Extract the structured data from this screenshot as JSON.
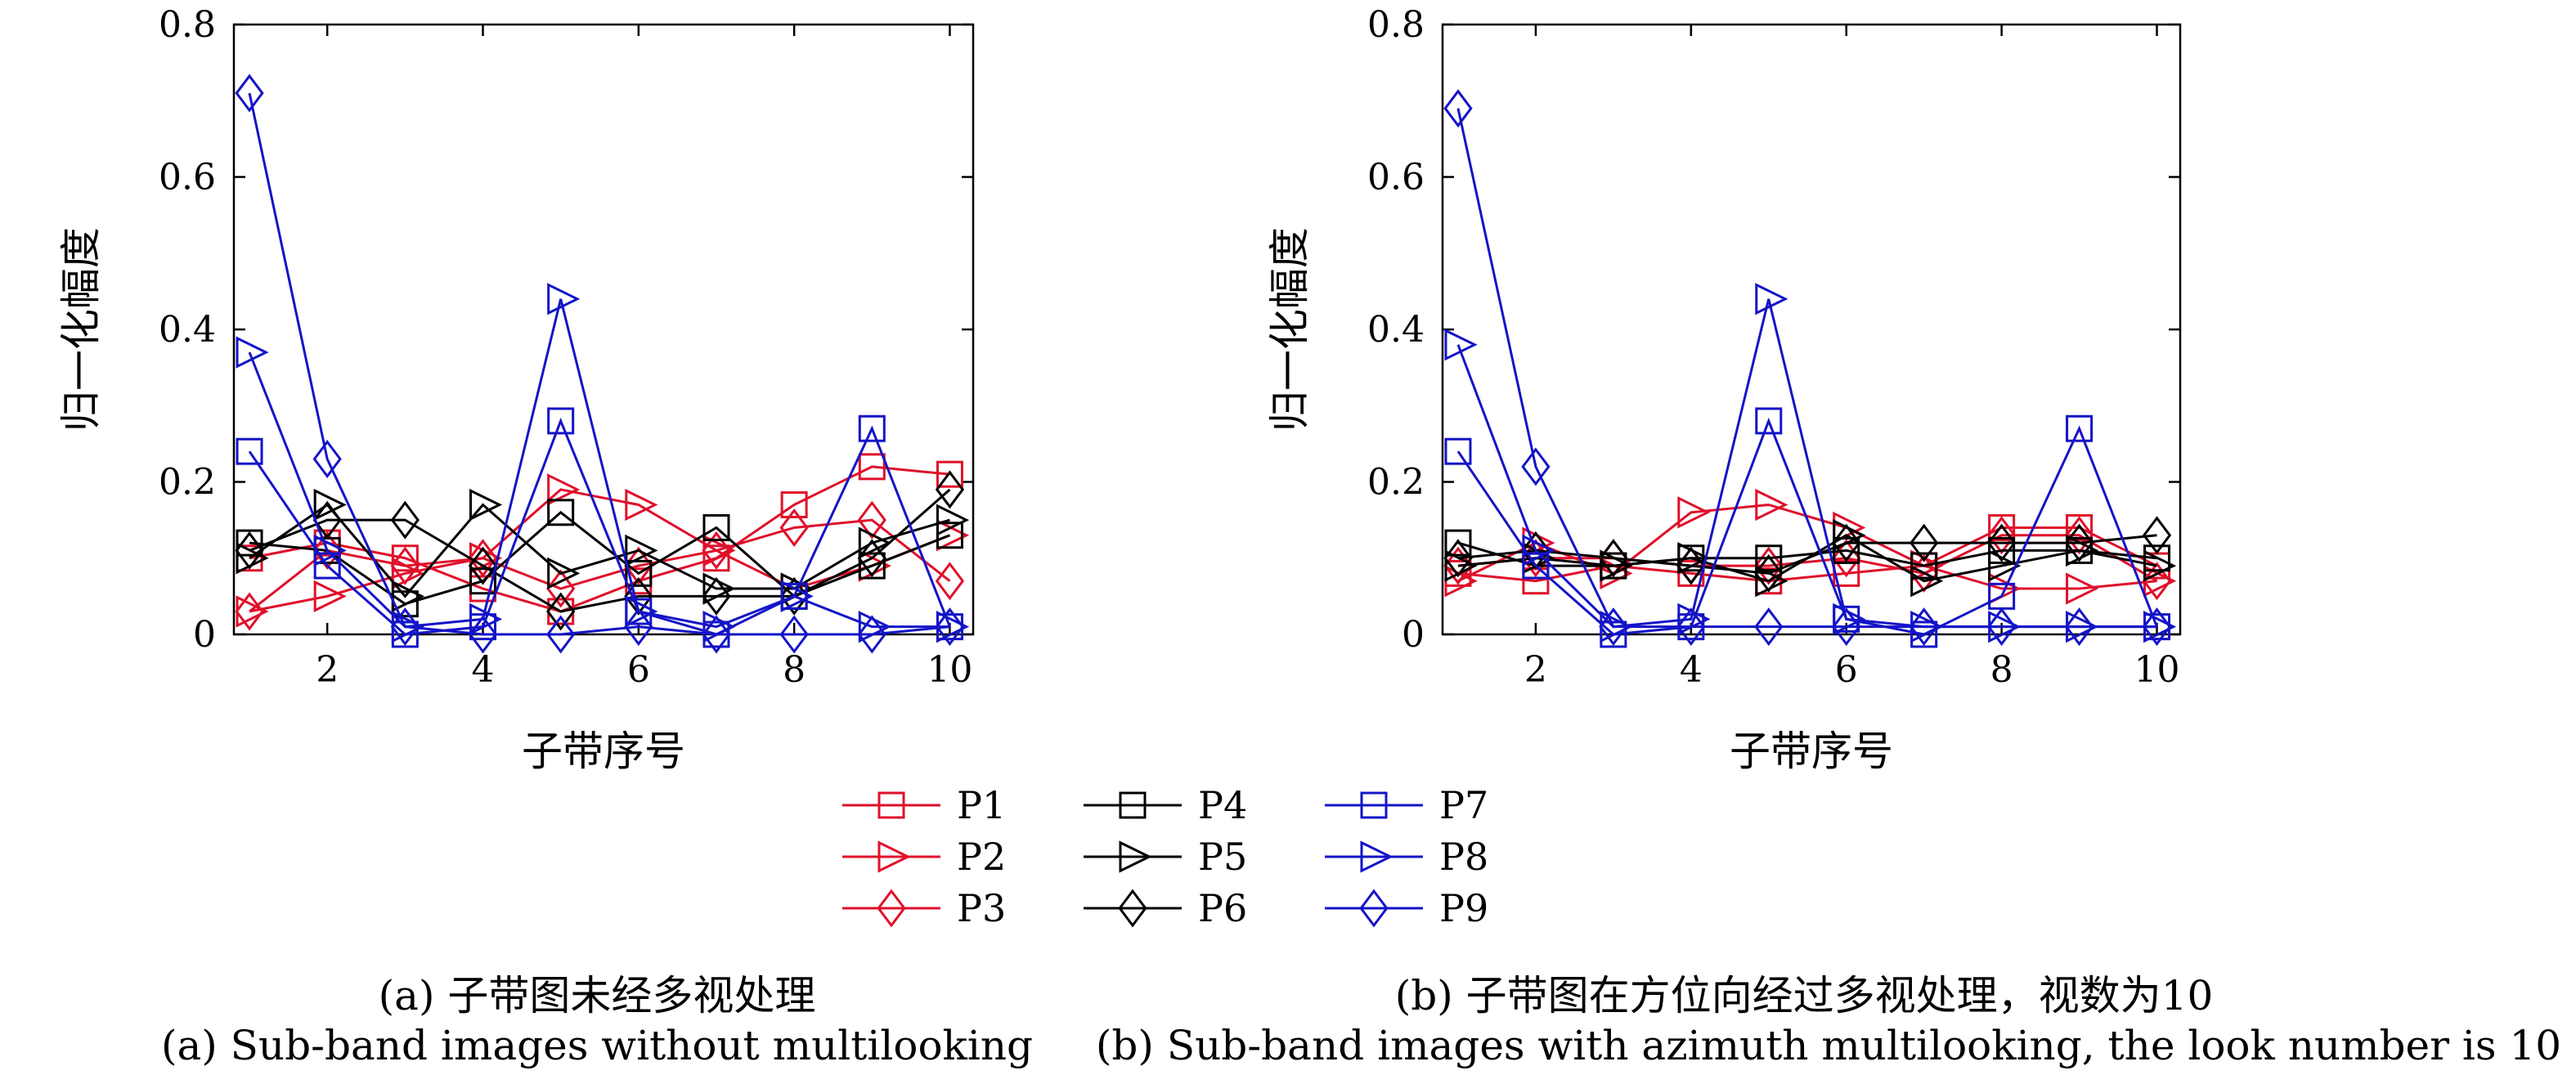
{
  "colors": {
    "P1": "#e0102a",
    "P2": "#e0102a",
    "P3": "#e0102a",
    "P4": "#000000",
    "P5": "#000000",
    "P6": "#000000",
    "P7": "#1414c8",
    "P8": "#1414c8",
    "P9": "#1414c8"
  },
  "markers": {
    "P1": "square",
    "P2": "triangle-right",
    "P3": "diamond",
    "P4": "square",
    "P5": "triangle-right",
    "P6": "diamond",
    "P7": "square",
    "P8": "triangle-right",
    "P9": "diamond"
  },
  "legend": {
    "entries": [
      "P1",
      "P2",
      "P3",
      "P4",
      "P5",
      "P6",
      "P7",
      "P8",
      "P9"
    ],
    "placement": "bottom-center"
  },
  "captions": {
    "a_cn": "(a) 子带图未经多视处理",
    "a_en": "(a) Sub-band images without multilooking",
    "b_cn": "(b) 子带图在方位向经过多视处理，视数为10",
    "b_en": "(b) Sub-band images with azimuth multilooking, the look number is 10"
  },
  "chart_data": [
    {
      "type": "line",
      "xlabel": "子带序号",
      "ylabel": "归一化幅度",
      "xlim": [
        0.8,
        10.3
      ],
      "ylim": [
        0,
        0.8
      ],
      "xticks": [
        2,
        4,
        6,
        8,
        10
      ],
      "yticks": [
        0,
        0.2,
        0.4,
        0.6,
        0.8
      ],
      "grid": false,
      "x": [
        1,
        2,
        3,
        4,
        5,
        6,
        7,
        8,
        9,
        10
      ],
      "series": [
        {
          "name": "P1",
          "values": [
            0.1,
            0.12,
            0.1,
            0.06,
            0.03,
            0.07,
            0.1,
            0.17,
            0.22,
            0.21
          ]
        },
        {
          "name": "P2",
          "values": [
            0.03,
            0.05,
            0.08,
            0.1,
            0.19,
            0.17,
            0.11,
            0.06,
            0.09,
            0.13
          ]
        },
        {
          "name": "P3",
          "values": [
            0.03,
            0.11,
            0.09,
            0.1,
            0.06,
            0.09,
            0.11,
            0.14,
            0.15,
            0.07
          ]
        },
        {
          "name": "P4",
          "values": [
            0.12,
            0.11,
            0.04,
            0.07,
            0.16,
            0.08,
            0.14,
            0.05,
            0.09,
            0.13
          ]
        },
        {
          "name": "P5",
          "values": [
            0.1,
            0.17,
            0.05,
            0.17,
            0.08,
            0.11,
            0.06,
            0.06,
            0.12,
            0.15
          ]
        },
        {
          "name": "P6",
          "values": [
            0.11,
            0.15,
            0.15,
            0.09,
            0.03,
            0.05,
            0.05,
            0.05,
            0.1,
            0.19
          ]
        },
        {
          "name": "P7",
          "values": [
            0.24,
            0.09,
            0.0,
            0.01,
            0.28,
            0.03,
            0.0,
            0.05,
            0.27,
            0.01
          ]
        },
        {
          "name": "P8",
          "values": [
            0.37,
            0.11,
            0.01,
            0.02,
            0.44,
            0.03,
            0.01,
            0.05,
            0.01,
            0.01
          ]
        },
        {
          "name": "P9",
          "values": [
            0.71,
            0.23,
            0.01,
            0.0,
            0.0,
            0.01,
            0.0,
            0.0,
            0.0,
            0.01
          ]
        }
      ]
    },
    {
      "type": "line",
      "xlabel": "子带序号",
      "ylabel": "归一化幅度",
      "xlim": [
        0.8,
        10.3
      ],
      "ylim": [
        0,
        0.8
      ],
      "xticks": [
        2,
        4,
        6,
        8,
        10
      ],
      "yticks": [
        0,
        0.2,
        0.4,
        0.6,
        0.8
      ],
      "grid": false,
      "x": [
        1,
        2,
        3,
        4,
        5,
        6,
        7,
        8,
        9,
        10
      ],
      "series": [
        {
          "name": "P1",
          "values": [
            0.08,
            0.07,
            0.09,
            0.08,
            0.07,
            0.08,
            0.09,
            0.14,
            0.14,
            0.09
          ]
        },
        {
          "name": "P2",
          "values": [
            0.07,
            0.12,
            0.08,
            0.16,
            0.17,
            0.14,
            0.09,
            0.06,
            0.06,
            0.07
          ]
        },
        {
          "name": "P3",
          "values": [
            0.09,
            0.1,
            0.1,
            0.09,
            0.09,
            0.1,
            0.08,
            0.13,
            0.13,
            0.07
          ]
        },
        {
          "name": "P4",
          "values": [
            0.12,
            0.09,
            0.09,
            0.1,
            0.1,
            0.11,
            0.09,
            0.11,
            0.11,
            0.1
          ]
        },
        {
          "name": "P5",
          "values": [
            0.09,
            0.1,
            0.09,
            0.1,
            0.07,
            0.13,
            0.07,
            0.09,
            0.11,
            0.09
          ]
        },
        {
          "name": "P6",
          "values": [
            0.1,
            0.11,
            0.1,
            0.09,
            0.08,
            0.12,
            0.12,
            0.12,
            0.12,
            0.13
          ]
        },
        {
          "name": "P7",
          "values": [
            0.24,
            0.09,
            0.0,
            0.01,
            0.28,
            0.02,
            0.0,
            0.05,
            0.27,
            0.01
          ]
        },
        {
          "name": "P8",
          "values": [
            0.38,
            0.11,
            0.01,
            0.02,
            0.44,
            0.02,
            0.01,
            0.01,
            0.01,
            0.01
          ]
        },
        {
          "name": "P9",
          "values": [
            0.69,
            0.22,
            0.01,
            0.01,
            0.01,
            0.01,
            0.01,
            0.01,
            0.01,
            0.01
          ]
        }
      ]
    }
  ]
}
